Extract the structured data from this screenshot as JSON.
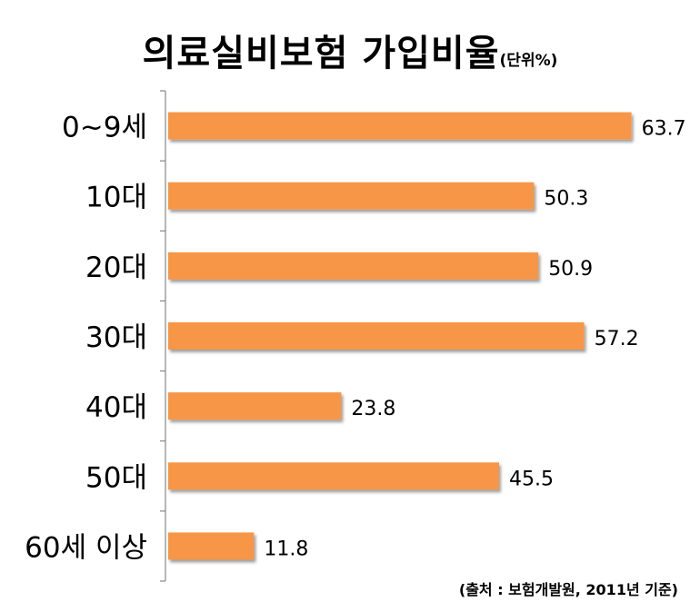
{
  "chart_data": {
    "type": "bar",
    "orientation": "horizontal",
    "title": "의료실비보험 가입비율",
    "unit_label": "(단위%)",
    "categories": [
      "0~9세",
      "10대",
      "20대",
      "30대",
      "40대",
      "50대",
      "60세 이상"
    ],
    "values": [
      63.7,
      50.3,
      50.9,
      57.2,
      23.8,
      45.5,
      11.8
    ],
    "value_labels": [
      "63.7",
      "50.3",
      "50.9",
      "57.2",
      "23.8",
      "45.5",
      "11.8"
    ],
    "xlim": [
      0,
      70
    ],
    "grid": false,
    "legend": "none",
    "bar_color": "#F79646",
    "source": "(출처 : 보험개발원, 2011년 기준)"
  }
}
